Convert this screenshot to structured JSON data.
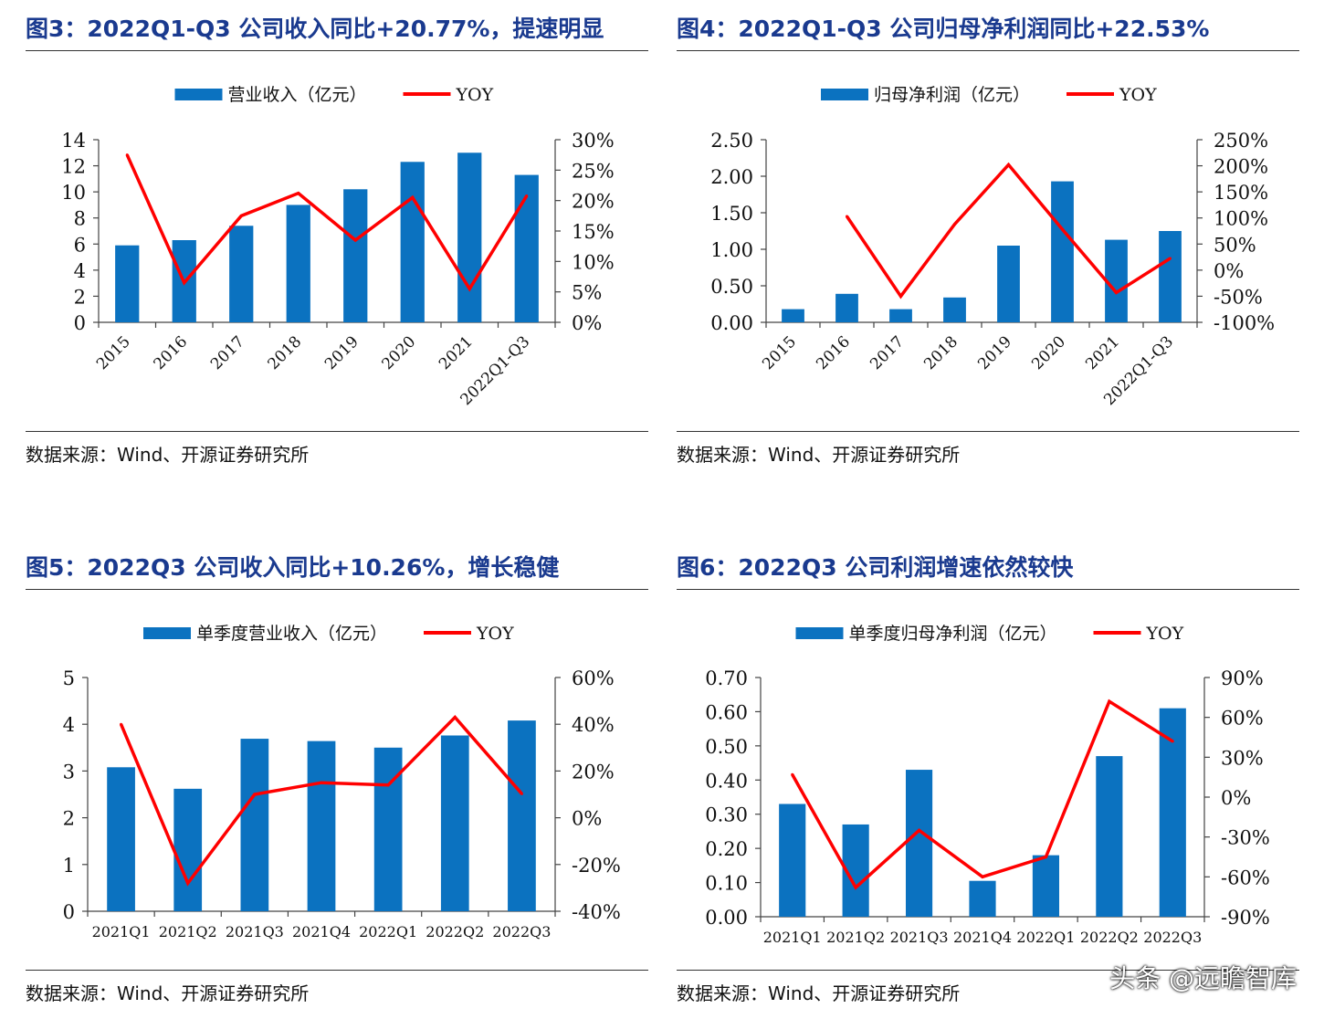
{
  "source_text": "数据来源：Wind、开源证券研究所",
  "watermark": "头条 @远瞻智库",
  "colors": {
    "bar": "#0b72c0",
    "line": "#ff0000",
    "title": "#1a3a8f"
  },
  "chart_data": [
    {
      "type": "bar+line",
      "title": "图3：2022Q1-Q3 公司收入同比+20.77%，提速明显",
      "categories": [
        "2015",
        "2016",
        "2017",
        "2018",
        "2019",
        "2020",
        "2021",
        "2022Q1-Q3"
      ],
      "x_labels_rotated": true,
      "series": [
        {
          "name": "营业收入（亿元）",
          "type": "bar",
          "axis": "left",
          "values": [
            5.9,
            6.3,
            7.4,
            9.0,
            10.2,
            12.3,
            13.0,
            11.3
          ]
        },
        {
          "name": "YOY",
          "type": "line",
          "axis": "right",
          "values": [
            27.5,
            6.5,
            17.5,
            21.2,
            13.5,
            20.5,
            5.5,
            20.77
          ]
        }
      ],
      "left_axis": {
        "ticks": [
          0,
          2,
          4,
          6,
          8,
          10,
          12,
          14
        ],
        "labels": [
          "0",
          "2",
          "4",
          "6",
          "8",
          "10",
          "12",
          "14"
        ],
        "ylim": [
          0,
          14
        ]
      },
      "right_axis": {
        "ticks": [
          0,
          5,
          10,
          15,
          20,
          25,
          30
        ],
        "labels": [
          "0%",
          "5%",
          "10%",
          "15%",
          "20%",
          "25%",
          "30%"
        ],
        "ylim": [
          0,
          30
        ]
      }
    },
    {
      "type": "bar+line",
      "title": "图4：2022Q1-Q3 公司归母净利润同比+22.53%",
      "categories": [
        "2015",
        "2016",
        "2017",
        "2018",
        "2019",
        "2020",
        "2021",
        "2022Q1-Q3"
      ],
      "x_labels_rotated": true,
      "series": [
        {
          "name": "归母净利润（亿元）",
          "type": "bar",
          "axis": "left",
          "values": [
            0.18,
            0.39,
            0.18,
            0.34,
            1.05,
            1.93,
            1.13,
            1.25
          ]
        },
        {
          "name": "YOY",
          "type": "line",
          "axis": "right",
          "values": [
            null,
            103,
            -50,
            88,
            202,
            78,
            -43,
            22.53
          ]
        }
      ],
      "left_axis": {
        "ticks": [
          0,
          0.5,
          1,
          1.5,
          2,
          2.5
        ],
        "labels": [
          "0.00",
          "0.50",
          "1.00",
          "1.50",
          "2.00",
          "2.50"
        ],
        "ylim": [
          0,
          2.5
        ]
      },
      "right_axis": {
        "ticks": [
          -100,
          -50,
          0,
          50,
          100,
          150,
          200,
          250
        ],
        "labels": [
          "-100%",
          "-50%",
          "0%",
          "50%",
          "100%",
          "150%",
          "200%",
          "250%"
        ],
        "ylim": [
          -100,
          250
        ]
      }
    },
    {
      "type": "bar+line",
      "title": "图5：2022Q3 公司收入同比+10.26%，增长稳健",
      "categories": [
        "2021Q1",
        "2021Q2",
        "2021Q3",
        "2021Q4",
        "2022Q1",
        "2022Q2",
        "2022Q3"
      ],
      "x_labels_rotated": false,
      "series": [
        {
          "name": "单季度营业收入（亿元）",
          "type": "bar",
          "axis": "left",
          "values": [
            3.08,
            2.62,
            3.69,
            3.64,
            3.5,
            3.76,
            4.08
          ]
        },
        {
          "name": "YOY",
          "type": "line",
          "axis": "right",
          "values": [
            40,
            -28,
            10,
            15,
            14,
            43,
            10.26
          ]
        }
      ],
      "left_axis": {
        "ticks": [
          0,
          1,
          2,
          3,
          4,
          5
        ],
        "labels": [
          "0",
          "1",
          "2",
          "3",
          "4",
          "5"
        ],
        "ylim": [
          0,
          5
        ]
      },
      "right_axis": {
        "ticks": [
          -40,
          -20,
          0,
          20,
          40,
          60
        ],
        "labels": [
          "-40%",
          "-20%",
          "0%",
          "20%",
          "40%",
          "60%"
        ],
        "ylim": [
          -40,
          60
        ]
      }
    },
    {
      "type": "bar+line",
      "title": "图6：2022Q3 公司利润增速依然较快",
      "categories": [
        "2021Q1",
        "2021Q2",
        "2021Q3",
        "2021Q4",
        "2022Q1",
        "2022Q2",
        "2022Q3"
      ],
      "x_labels_rotated": false,
      "series": [
        {
          "name": "单季度归母净利润（亿元）",
          "type": "bar",
          "axis": "left",
          "values": [
            0.33,
            0.27,
            0.43,
            0.105,
            0.18,
            0.47,
            0.61
          ]
        },
        {
          "name": "YOY",
          "type": "line",
          "axis": "right",
          "values": [
            17,
            -68,
            -25,
            -60,
            -45,
            72,
            42
          ]
        }
      ],
      "left_axis": {
        "ticks": [
          0,
          0.1,
          0.2,
          0.3,
          0.4,
          0.5,
          0.6,
          0.7
        ],
        "labels": [
          "0.00",
          "0.10",
          "0.20",
          "0.30",
          "0.40",
          "0.50",
          "0.60",
          "0.70"
        ],
        "ylim": [
          0,
          0.7
        ]
      },
      "right_axis": {
        "ticks": [
          -90,
          -60,
          -30,
          0,
          30,
          60,
          90
        ],
        "labels": [
          "-90%",
          "-60%",
          "-30%",
          "0%",
          "30%",
          "60%",
          "90%"
        ],
        "ylim": [
          -90,
          90
        ]
      }
    }
  ]
}
